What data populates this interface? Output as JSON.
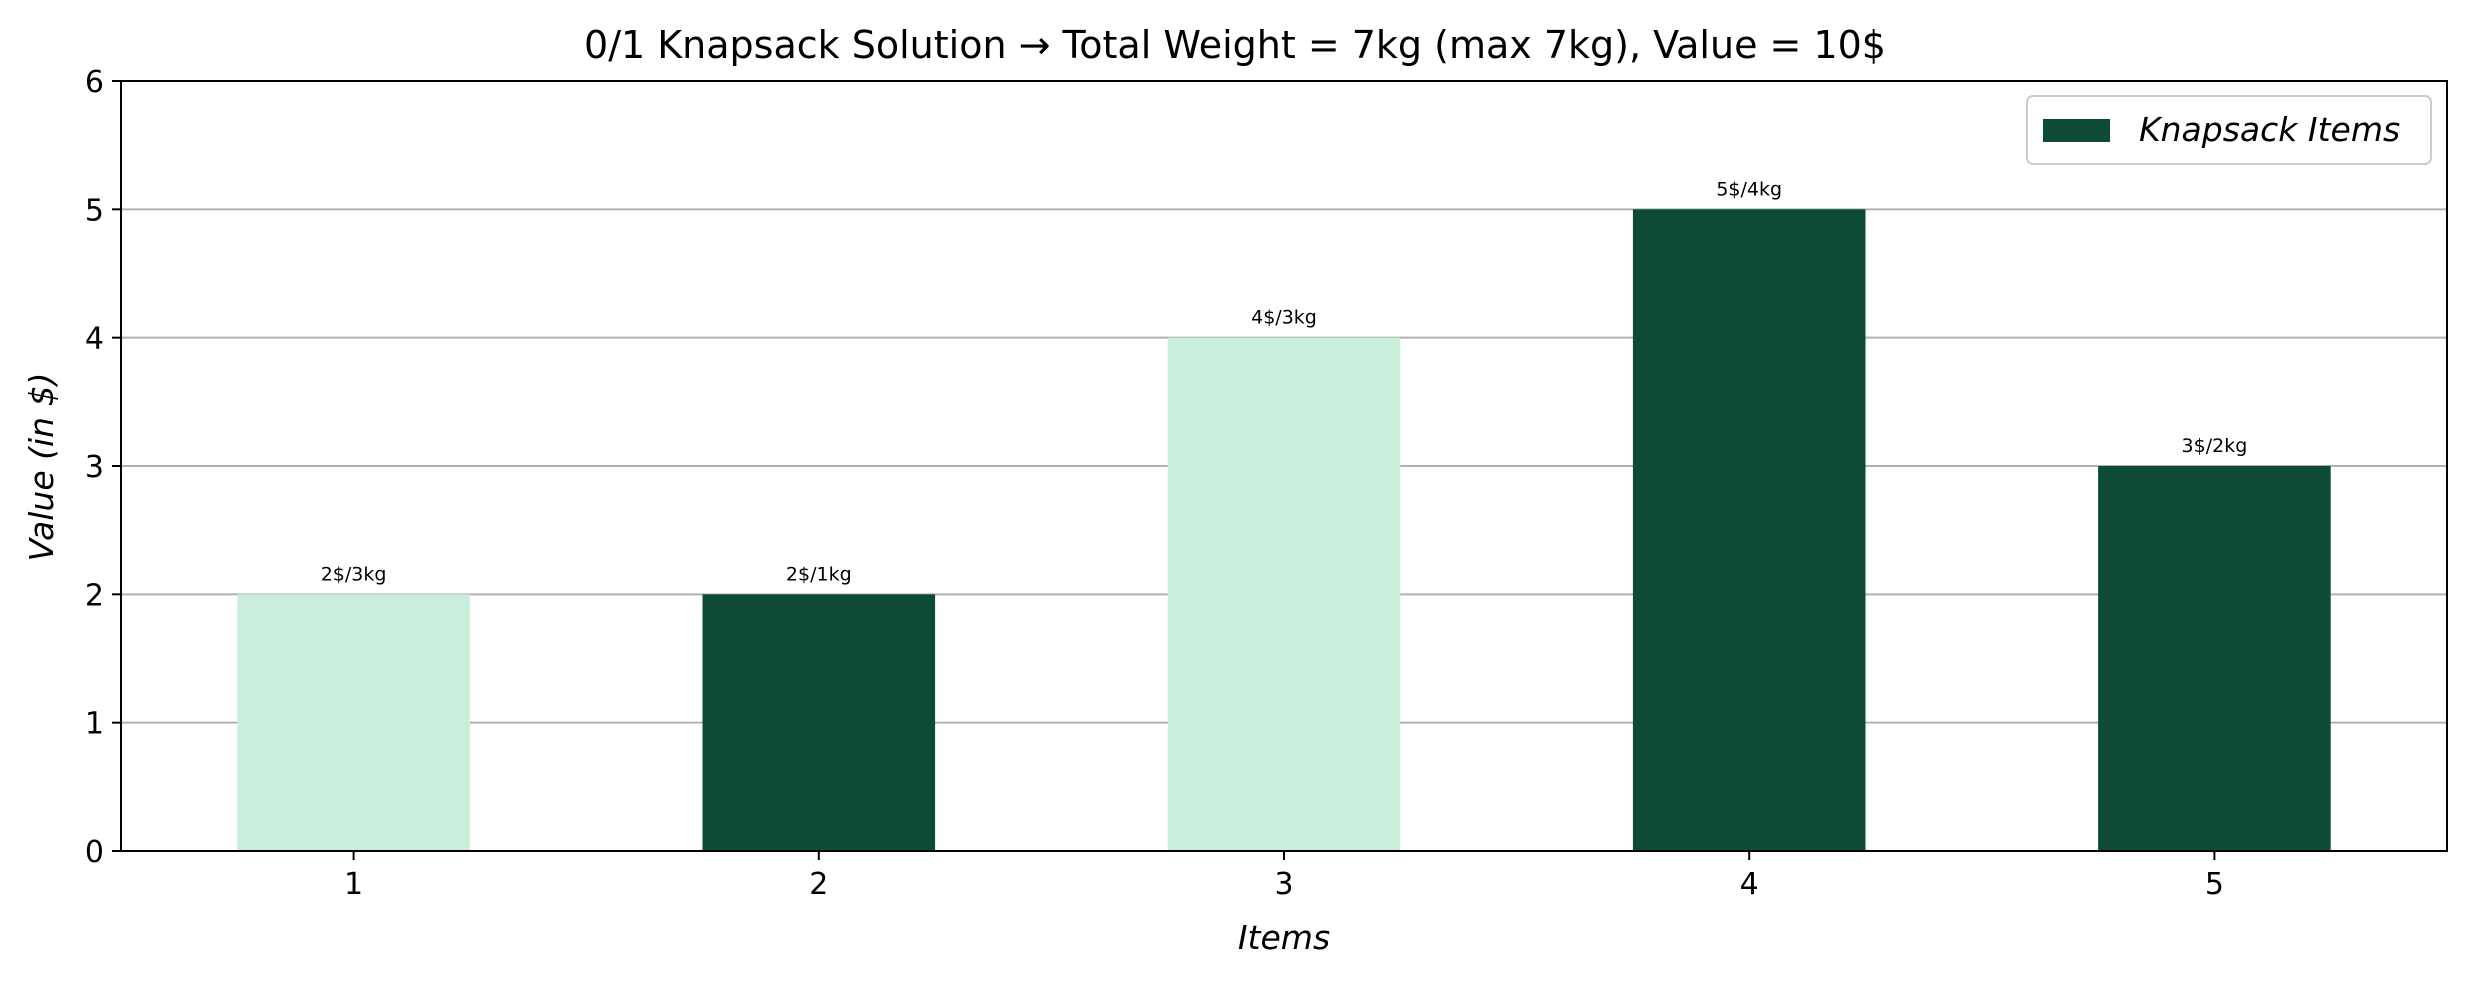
{
  "chart_data": {
    "type": "bar",
    "title": "0/1 Knapsack Solution → Total Weight = 7kg (max 7kg), Value = 10$",
    "xlabel": "Items",
    "ylabel": "Value (in $)",
    "categories": [
      "1",
      "2",
      "3",
      "4",
      "5"
    ],
    "values": [
      2,
      2,
      4,
      5,
      3
    ],
    "data_labels": [
      "2$/3kg",
      "2$/1kg",
      "4$/3kg",
      "5$/4kg",
      "3$/2kg"
    ],
    "in_knapsack": [
      false,
      true,
      false,
      true,
      true
    ],
    "ylim": [
      0,
      6
    ],
    "yticks": [
      "0",
      "1",
      "2",
      "3",
      "4",
      "5",
      "6"
    ],
    "grid": "horizontal",
    "legend": {
      "placement": "top-right",
      "entries": [
        "Knapsack Items"
      ]
    },
    "colors": {
      "selected": "#0d4b35",
      "not_selected": "#c9efdc",
      "grid": "#b0b0b0"
    }
  }
}
